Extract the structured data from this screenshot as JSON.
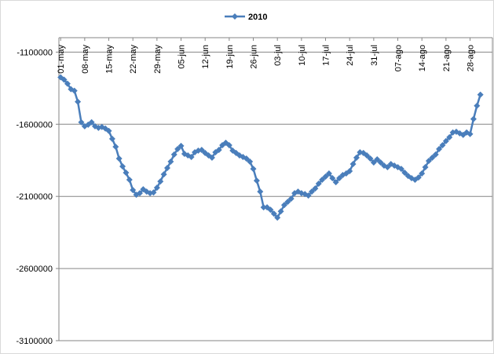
{
  "chart_data": {
    "type": "line",
    "categories": [
      "01-may",
      null,
      null,
      null,
      null,
      null,
      null,
      "08-may",
      null,
      null,
      null,
      null,
      null,
      null,
      "15-may",
      null,
      null,
      null,
      null,
      null,
      null,
      "22-may",
      null,
      null,
      null,
      null,
      null,
      null,
      "29-may",
      null,
      null,
      null,
      null,
      null,
      null,
      "05-jun",
      null,
      null,
      null,
      null,
      null,
      null,
      "12-jun",
      null,
      null,
      null,
      null,
      null,
      null,
      "19-jun",
      null,
      null,
      null,
      null,
      null,
      null,
      "26-jun",
      null,
      null,
      null,
      null,
      null,
      null,
      "03-jul",
      null,
      null,
      null,
      null,
      null,
      null,
      "10-jul",
      null,
      null,
      null,
      null,
      null,
      null,
      "17-jul",
      null,
      null,
      null,
      null,
      null,
      null,
      "24-jul",
      null,
      null,
      null,
      null,
      null,
      null,
      "31-jul",
      null,
      null,
      null,
      null,
      null,
      null,
      "07-ago",
      null,
      null,
      null,
      null,
      null,
      null,
      "14-ago",
      null,
      null,
      null,
      null,
      null,
      null,
      "21-ago",
      null,
      null,
      null,
      null,
      null,
      null,
      "28-ago",
      null,
      null,
      null,
      null,
      null,
      null
    ],
    "series": [
      {
        "name": "2010",
        "color": "#4a7ebb",
        "values": [
          -1275000,
          -1291000,
          -1319000,
          -1357000,
          -1368000,
          -1444000,
          -1586000,
          -1614000,
          -1603000,
          -1586000,
          -1614000,
          -1625000,
          -1619000,
          -1630000,
          -1646000,
          -1701000,
          -1756000,
          -1838000,
          -1892000,
          -1936000,
          -1985000,
          -2056000,
          -2089000,
          -2078000,
          -2051000,
          -2067000,
          -2078000,
          -2073000,
          -2040000,
          -1996000,
          -1947000,
          -1903000,
          -1859000,
          -1810000,
          -1772000,
          -1750000,
          -1805000,
          -1816000,
          -1827000,
          -1794000,
          -1783000,
          -1778000,
          -1799000,
          -1816000,
          -1832000,
          -1794000,
          -1778000,
          -1745000,
          -1728000,
          -1745000,
          -1783000,
          -1799000,
          -1816000,
          -1827000,
          -1838000,
          -1859000,
          -1909000,
          -1991000,
          -2067000,
          -2176000,
          -2176000,
          -2193000,
          -2220000,
          -2247000,
          -2204000,
          -2160000,
          -2138000,
          -2116000,
          -2078000,
          -2067000,
          -2078000,
          -2084000,
          -2094000,
          -2067000,
          -2045000,
          -2012000,
          -1985000,
          -1963000,
          -1941000,
          -1974000,
          -2002000,
          -1974000,
          -1952000,
          -1941000,
          -1925000,
          -1876000,
          -1832000,
          -1794000,
          -1799000,
          -1816000,
          -1838000,
          -1865000,
          -1843000,
          -1865000,
          -1887000,
          -1898000,
          -1876000,
          -1887000,
          -1898000,
          -1909000,
          -1936000,
          -1958000,
          -1974000,
          -1985000,
          -1969000,
          -1941000,
          -1898000,
          -1854000,
          -1832000,
          -1810000,
          -1772000,
          -1745000,
          -1717000,
          -1690000,
          -1657000,
          -1652000,
          -1663000,
          -1674000,
          -1657000,
          -1668000,
          -1564000,
          -1472000,
          -1395000,
          null,
          null,
          null
        ]
      }
    ],
    "ylim": [
      -3100000,
      -1000000
    ],
    "yticks": [
      -1100000,
      -1600000,
      -2100000,
      -2600000,
      -3100000
    ],
    "grid": true,
    "legend": "top"
  }
}
